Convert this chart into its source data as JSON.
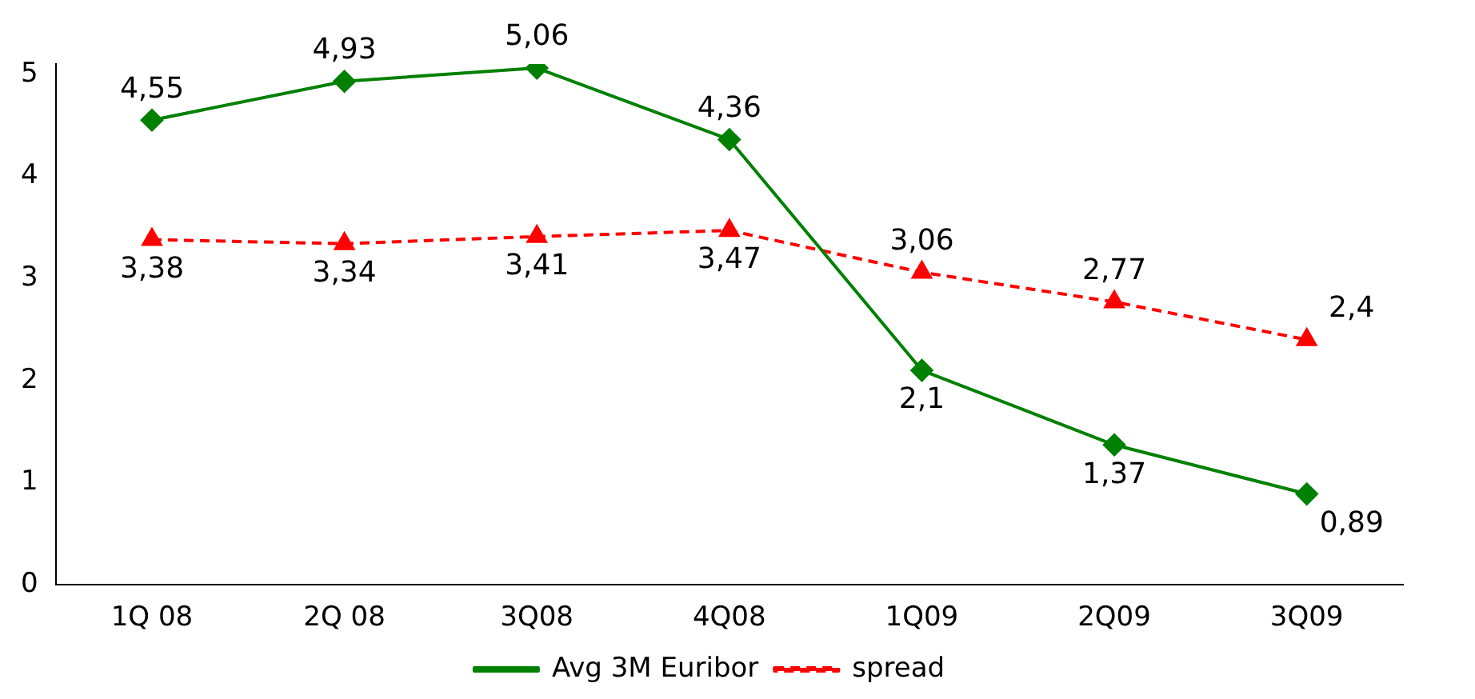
{
  "chart_data": {
    "type": "line",
    "categories": [
      "1Q 08",
      "2Q 08",
      "3Q08",
      "4Q08",
      "1Q09",
      "2Q09",
      "3Q09"
    ],
    "series": [
      {
        "name": "Avg 3M Euribor",
        "color": "#008000",
        "values": [
          4.55,
          4.93,
          5.06,
          4.36,
          2.1,
          1.37,
          0.89
        ],
        "value_labels": [
          "4,55",
          "4,93",
          "5,06",
          "4,36",
          "2,1",
          "1,37",
          "0,89"
        ],
        "marker": "diamond",
        "line_style": "solid"
      },
      {
        "name": "spread",
        "color": "#ff0000",
        "values": [
          3.38,
          3.34,
          3.41,
          3.47,
          3.06,
          2.77,
          2.4
        ],
        "value_labels": [
          "3,38",
          "3,34",
          "3,41",
          "3,47",
          "3,06",
          "2,77",
          "2,4"
        ],
        "marker": "triangle",
        "line_style": "dashed"
      }
    ],
    "ylim": [
      0,
      5.1
    ],
    "yticks": [
      0,
      1,
      2,
      3,
      4,
      5
    ],
    "grid": false,
    "legend": "bottom"
  }
}
